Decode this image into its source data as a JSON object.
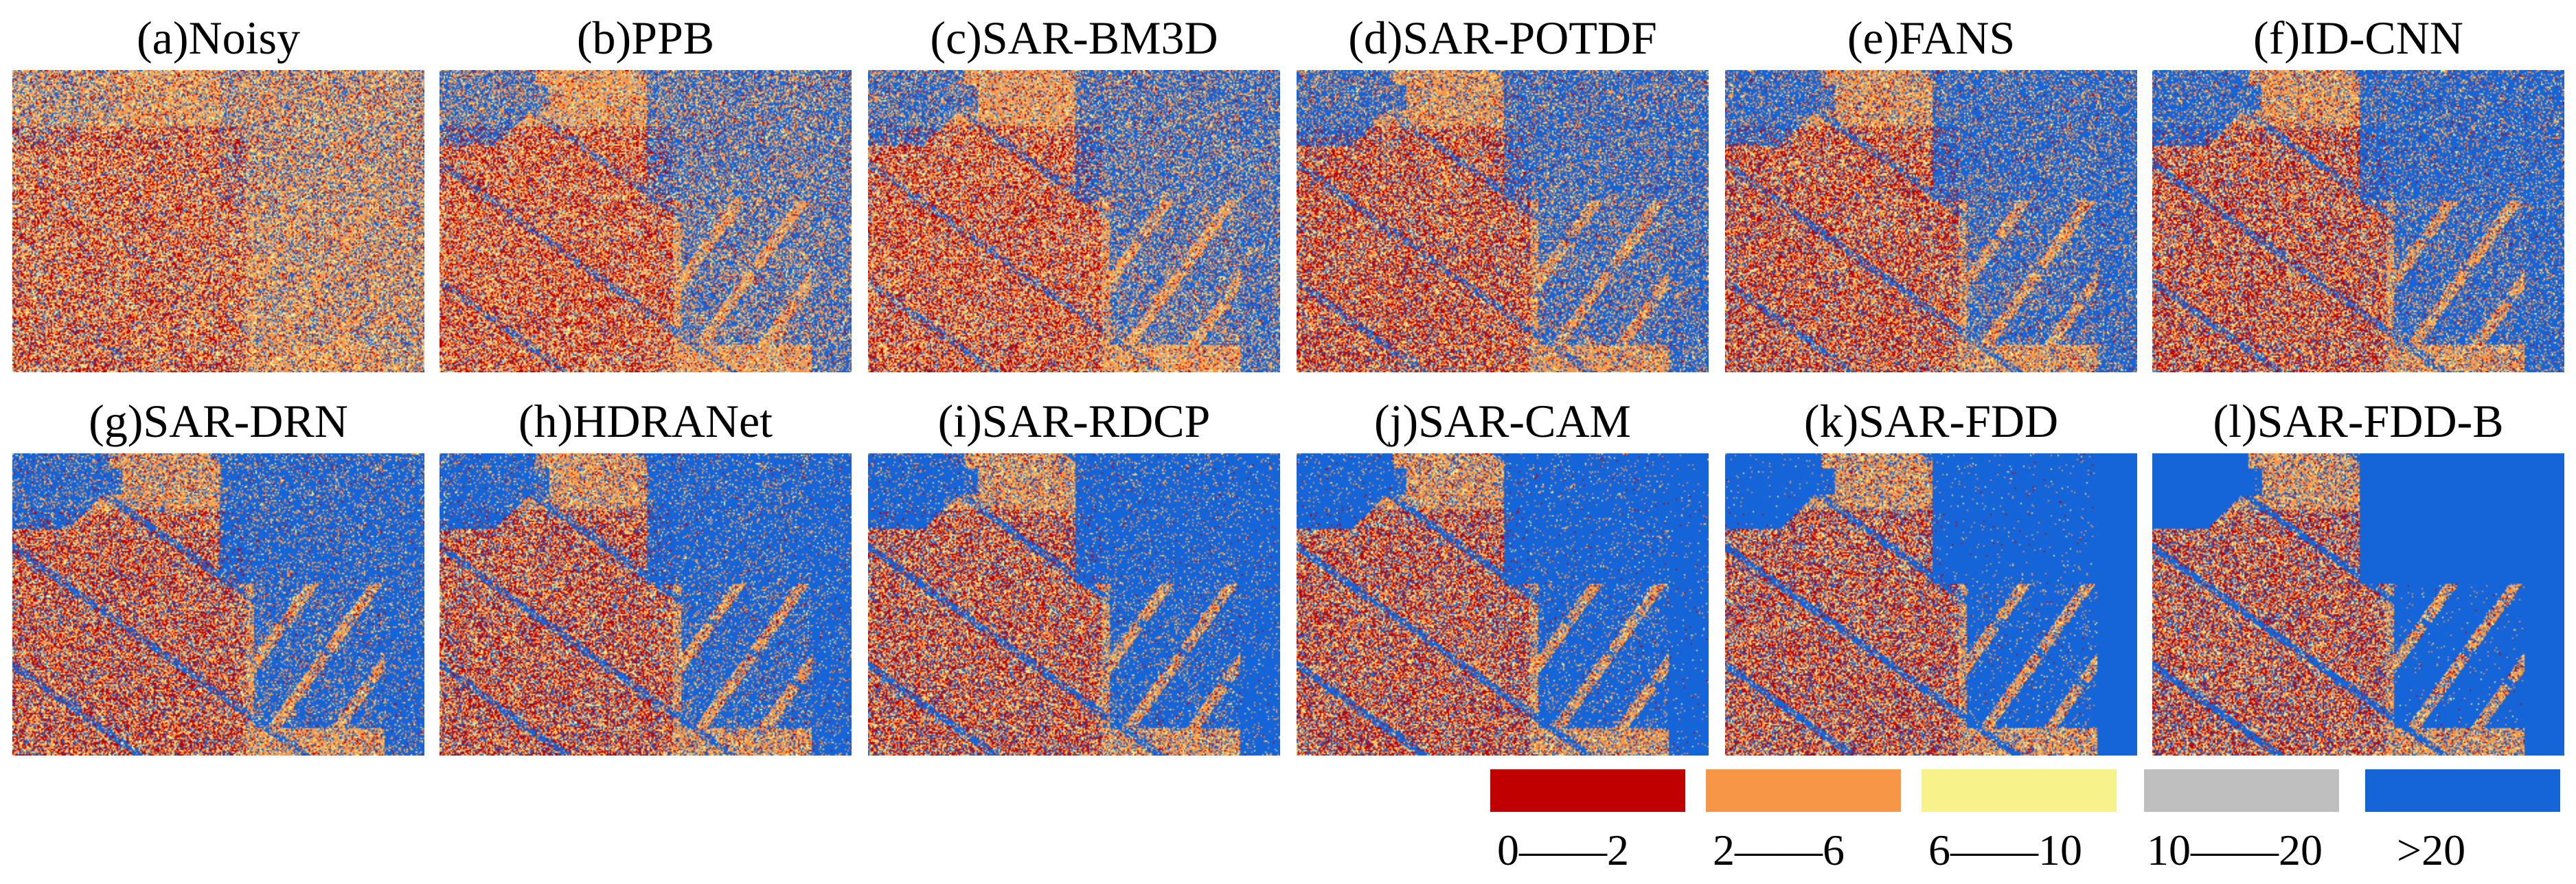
{
  "panels": [
    {
      "label": "(a)Noisy"
    },
    {
      "label": "(b)PPB"
    },
    {
      "label": "(c)SAR-BM3D"
    },
    {
      "label": "(d)SAR-POTDF"
    },
    {
      "label": "(e)FANS"
    },
    {
      "label": "(f)ID-CNN"
    },
    {
      "label": "(g)SAR-DRN"
    },
    {
      "label": "(h)HDRANet"
    },
    {
      "label": "(i)SAR-RDCP"
    },
    {
      "label": "(j)SAR-CAM"
    },
    {
      "label": "(k)SAR-FDD"
    },
    {
      "label": "(l)SAR-FDD-B"
    }
  ],
  "legend": [
    {
      "label": "0——2",
      "color": "#c00000"
    },
    {
      "label": "2——6",
      "color": "#f79646"
    },
    {
      "label": "6——10",
      "color": "#f7f38a"
    },
    {
      "label": "10——20",
      "color": "#bfbfbf"
    },
    {
      "label": ">20",
      "color": "#1565d8"
    }
  ]
}
